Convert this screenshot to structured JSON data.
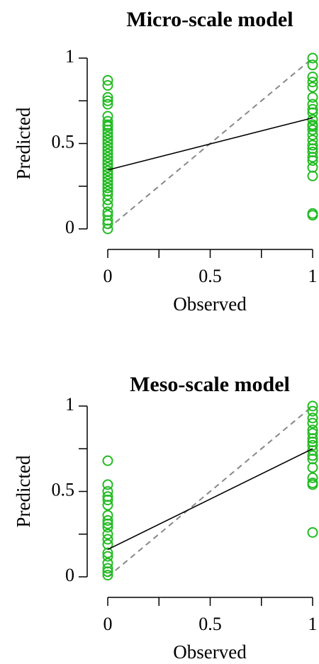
{
  "chart_data": [
    {
      "type": "scatter",
      "title": "Micro-scale model",
      "xlabel": "Observed",
      "ylabel": "Predicted",
      "color": "#22bb22",
      "x": [
        0,
        0,
        0,
        0,
        0,
        0,
        0,
        0,
        0,
        0,
        0,
        0,
        0,
        0,
        0,
        0,
        0,
        0,
        0,
        0,
        0,
        0,
        0,
        0,
        0,
        0,
        0,
        0,
        0,
        0,
        0,
        0,
        0,
        0,
        0,
        0,
        1,
        1,
        1,
        1,
        1,
        1,
        1,
        1,
        1,
        1,
        1,
        1,
        1,
        1,
        1,
        1,
        1,
        1,
        1,
        1,
        1,
        1,
        1,
        1
      ],
      "values": [
        0.87,
        0.84,
        0.77,
        0.75,
        0.73,
        0.66,
        0.63,
        0.61,
        0.6,
        0.58,
        0.56,
        0.54,
        0.52,
        0.5,
        0.48,
        0.46,
        0.44,
        0.42,
        0.4,
        0.38,
        0.36,
        0.34,
        0.32,
        0.3,
        0.28,
        0.26,
        0.24,
        0.22,
        0.2,
        0.17,
        0.14,
        0.1,
        0.08,
        0.05,
        0.03,
        0,
        1,
        0.96,
        0.89,
        0.86,
        0.83,
        0.77,
        0.73,
        0.7,
        0.68,
        0.64,
        0.61,
        0.6,
        0.58,
        0.55,
        0.52,
        0.49,
        0.47,
        0.45,
        0.42,
        0.4,
        0.36,
        0.31,
        0.09,
        0.08
      ],
      "fit_line": {
        "x": [
          0,
          1
        ],
        "values": [
          0.345,
          0.65
        ]
      },
      "reference_line": {
        "x": [
          0,
          1
        ],
        "values": [
          0,
          1
        ]
      },
      "xlim": [
        -0.04,
        1.04
      ],
      "ylim": [
        -0.04,
        1.04
      ],
      "xticks": [
        0,
        0.5,
        1
      ],
      "xminor_ticks": [
        0.25,
        0.75
      ],
      "yticks": [
        0,
        0.5,
        1
      ],
      "yminor_ticks": [
        0.25,
        0.75
      ]
    },
    {
      "type": "scatter",
      "title": "Meso-scale model",
      "xlabel": "Observed",
      "ylabel": "Predicted",
      "color": "#22bb22",
      "x": [
        0,
        0,
        0,
        0,
        0,
        0,
        0,
        0,
        0,
        0,
        0,
        0,
        0,
        0,
        0,
        0,
        0,
        0,
        0,
        1,
        1,
        1,
        1,
        1,
        1,
        1,
        1,
        1,
        1,
        1,
        1,
        1,
        1,
        1,
        1,
        1
      ],
      "values": [
        0.68,
        0.54,
        0.5,
        0.47,
        0.45,
        0.42,
        0.36,
        0.33,
        0.31,
        0.29,
        0.25,
        0.22,
        0.19,
        0.14,
        0.12,
        0.08,
        0.05,
        0.03,
        0.01,
        1,
        0.97,
        0.93,
        0.9,
        0.86,
        0.84,
        0.81,
        0.79,
        0.77,
        0.74,
        0.71,
        0.69,
        0.64,
        0.58,
        0.55,
        0.54,
        0.26
      ],
      "fit_line": {
        "x": [
          0,
          1
        ],
        "values": [
          0.16,
          0.75
        ]
      },
      "reference_line": {
        "x": [
          0,
          1
        ],
        "values": [
          0,
          1
        ]
      },
      "xlim": [
        -0.04,
        1.04
      ],
      "ylim": [
        -0.04,
        1.04
      ],
      "xticks": [
        0,
        0.5,
        1
      ],
      "xminor_ticks": [
        0.25,
        0.75
      ],
      "yticks": [
        0,
        0.5,
        1
      ],
      "yminor_ticks": [
        0.25,
        0.75
      ]
    }
  ]
}
